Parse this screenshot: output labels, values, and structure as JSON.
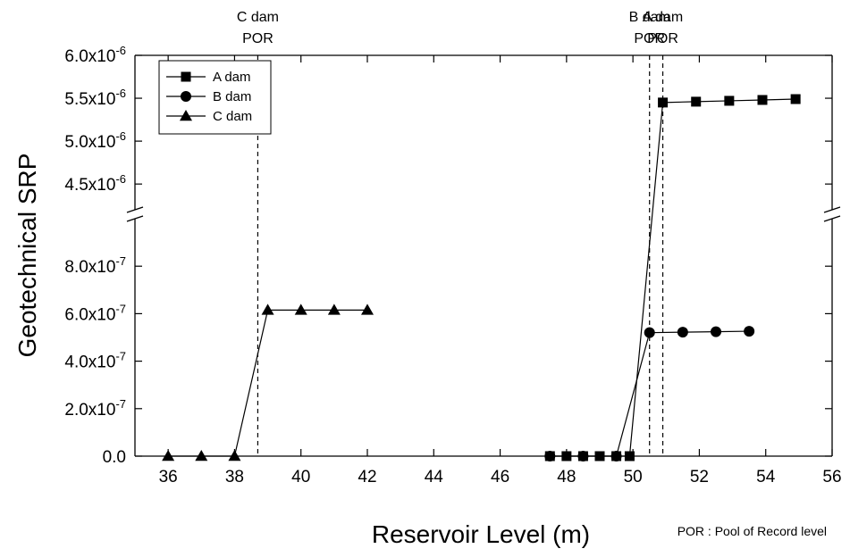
{
  "chart_data": {
    "type": "line",
    "xlabel": "Reservoir Level (m)",
    "ylabel": "Geotechnical SRP",
    "xlim": [
      35,
      56
    ],
    "x_ticks": [
      36,
      38,
      40,
      42,
      44,
      46,
      48,
      50,
      52,
      54,
      56
    ],
    "y_axis_broken": true,
    "ylim_lower": [
      0,
      1e-06
    ],
    "ylim_upper": [
      4.2e-06,
      6e-06
    ],
    "y_ticks_lower": [
      {
        "value": 0,
        "mantissa": "0.0",
        "exp": ""
      },
      {
        "value": 2e-07,
        "mantissa": "2.0x10",
        "exp": "-7"
      },
      {
        "value": 4e-07,
        "mantissa": "4.0x10",
        "exp": "-7"
      },
      {
        "value": 6e-07,
        "mantissa": "6.0x10",
        "exp": "-7"
      },
      {
        "value": 8e-07,
        "mantissa": "8.0x10",
        "exp": "-7"
      }
    ],
    "y_ticks_upper": [
      {
        "value": 4.5e-06,
        "mantissa": "4.5x10",
        "exp": "-6"
      },
      {
        "value": 5e-06,
        "mantissa": "5.0x10",
        "exp": "-6"
      },
      {
        "value": 5.5e-06,
        "mantissa": "5.5x10",
        "exp": "-6"
      },
      {
        "value": 6e-06,
        "mantissa": "6.0x10",
        "exp": "-6"
      }
    ],
    "series": [
      {
        "name": "A dam",
        "marker": "square",
        "x": [
          47.5,
          48.0,
          48.5,
          49.0,
          49.5,
          49.9,
          50.9,
          51.9,
          52.9,
          53.9,
          54.9
        ],
        "y": [
          0,
          0,
          0,
          0,
          0,
          0,
          5.45e-06,
          5.46e-06,
          5.47e-06,
          5.48e-06,
          5.49e-06
        ]
      },
      {
        "name": "B dam",
        "marker": "circle",
        "x": [
          47.5,
          48.5,
          49.5,
          50.5,
          51.5,
          52.5,
          53.5
        ],
        "y": [
          0,
          0,
          0,
          5.2e-07,
          5.22e-07,
          5.24e-07,
          5.26e-07
        ]
      },
      {
        "name": "C dam",
        "marker": "triangle",
        "x": [
          36,
          37,
          38,
          39,
          40,
          41,
          42
        ],
        "y": [
          0,
          0,
          0,
          6.15e-07,
          6.15e-07,
          6.15e-07,
          6.15e-07
        ]
      }
    ],
    "por_lines": [
      {
        "x": 38.7,
        "line1": "C dam",
        "line2": "POR"
      },
      {
        "x": 50.5,
        "line1": "B dam",
        "line2": "POR"
      },
      {
        "x": 50.9,
        "line1": "A dam",
        "line2": "POR"
      }
    ],
    "legend_position": "top-left",
    "note": "POR : Pool of Record level",
    "grid": false
  }
}
